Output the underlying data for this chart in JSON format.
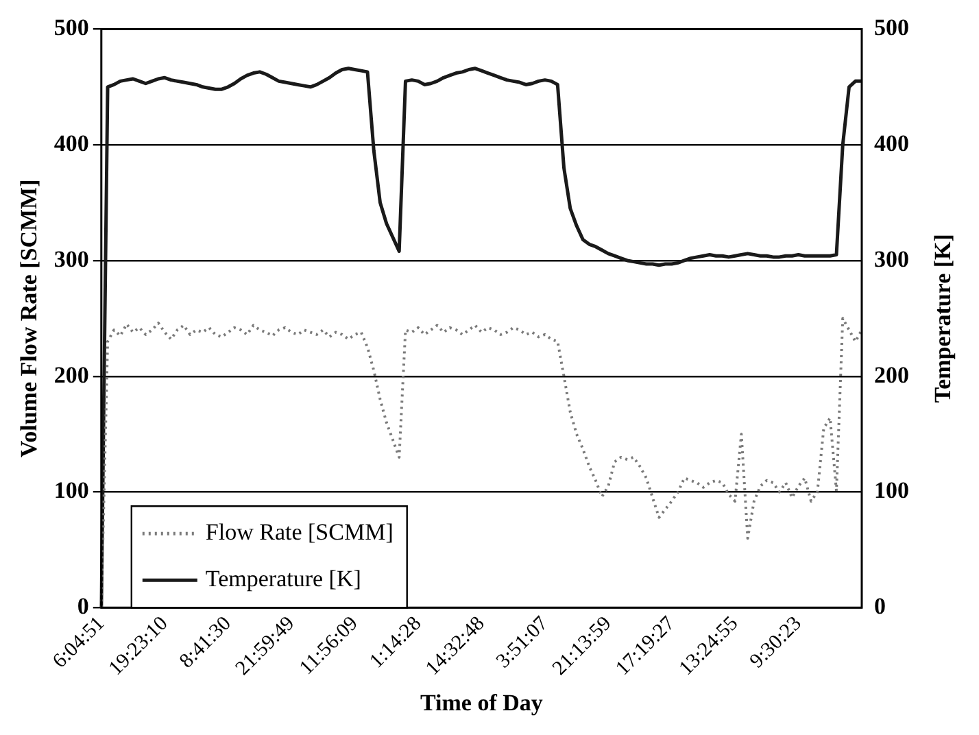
{
  "chart_data": {
    "type": "line",
    "xlabel": "Time of Day",
    "ylabel": "Volume Flow Rate [SCMM]",
    "y2label": "Temperature [K]",
    "categories": [
      "6:04:51",
      null,
      null,
      null,
      null,
      null,
      null,
      null,
      null,
      null,
      "19:23:10",
      null,
      null,
      null,
      null,
      null,
      null,
      null,
      null,
      null,
      "8:41:30",
      null,
      null,
      null,
      null,
      null,
      null,
      null,
      null,
      null,
      "21:59:49",
      null,
      null,
      null,
      null,
      null,
      null,
      null,
      null,
      null,
      "11:56:09",
      null,
      null,
      null,
      null,
      null,
      null,
      null,
      null,
      null,
      "1:14:28",
      null,
      null,
      null,
      null,
      null,
      null,
      null,
      null,
      null,
      "14:32:48",
      null,
      null,
      null,
      null,
      null,
      null,
      null,
      null,
      null,
      "3:51:07",
      null,
      null,
      null,
      null,
      null,
      null,
      null,
      null,
      null,
      "21:13:59",
      null,
      null,
      null,
      null,
      null,
      null,
      null,
      null,
      null,
      "17:19:27",
      null,
      null,
      null,
      null,
      null,
      null,
      null,
      null,
      null,
      "13:24:55",
      null,
      null,
      null,
      null,
      null,
      null,
      null,
      null,
      null,
      "9:30:23",
      null,
      null,
      null,
      null,
      null,
      null,
      null,
      null,
      null,
      null
    ],
    "series": [
      {
        "name": "Flow Rate [SCMM]",
        "color": "#7a7a7a",
        "line_style": "dotted",
        "values": [
          0,
          230,
          240,
          235,
          245,
          238,
          242,
          236,
          240,
          246,
          238,
          232,
          240,
          244,
          236,
          240,
          238,
          242,
          236,
          234,
          238,
          242,
          240,
          236,
          244,
          240,
          238,
          235,
          240,
          242,
          238,
          236,
          240,
          238,
          236,
          240,
          234,
          238,
          236,
          232,
          236,
          238,
          225,
          205,
          180,
          160,
          145,
          130,
          240,
          238,
          242,
          236,
          240,
          244,
          238,
          242,
          240,
          236,
          240,
          244,
          238,
          242,
          240,
          236,
          238,
          242,
          240,
          236,
          238,
          234,
          236,
          232,
          230,
          200,
          169,
          150,
          137,
          122,
          110,
          96,
          105,
          126,
          130,
          128,
          130,
          122,
          112,
          95,
          78,
          85,
          92,
          100,
          112,
          110,
          108,
          104,
          108,
          110,
          108,
          98,
          92,
          150,
          60,
          92,
          105,
          110,
          108,
          100,
          108,
          95,
          105,
          112,
          92,
          100,
          155,
          164,
          101,
          250,
          240,
          230,
          240
        ]
      },
      {
        "name": "Temperature [K]",
        "color": "#1a1a1a",
        "line_style": "solid",
        "axis": "y2",
        "values": [
          0,
          450,
          452,
          455,
          456,
          457,
          455,
          453,
          455,
          457,
          458,
          456,
          455,
          454,
          453,
          452,
          450,
          449,
          448,
          448,
          450,
          453,
          457,
          460,
          462,
          463,
          461,
          458,
          455,
          454,
          453,
          452,
          451,
          450,
          452,
          455,
          458,
          462,
          465,
          466,
          465,
          464,
          463,
          395,
          350,
          332,
          320,
          308,
          455,
          456,
          455,
          452,
          453,
          455,
          458,
          460,
          462,
          463,
          465,
          466,
          464,
          462,
          460,
          458,
          456,
          455,
          454,
          452,
          453,
          455,
          456,
          455,
          452,
          380,
          345,
          330,
          318,
          314,
          312,
          309,
          306,
          304,
          302,
          300,
          299,
          298,
          297,
          297,
          296,
          297,
          297,
          298,
          300,
          302,
          303,
          304,
          305,
          304,
          304,
          303,
          304,
          305,
          306,
          305,
          304,
          304,
          303,
          303,
          304,
          304,
          305,
          304,
          304,
          304,
          304,
          304,
          305,
          400,
          450,
          455,
          455
        ]
      }
    ],
    "ylim": [
      0,
      500
    ],
    "yticks": [
      0,
      100,
      200,
      300,
      400,
      500
    ],
    "y2lim": [
      0,
      500
    ],
    "y2ticks": [
      0,
      100,
      200,
      300,
      400,
      500
    ],
    "grid": "y",
    "legend": "bottom left"
  }
}
